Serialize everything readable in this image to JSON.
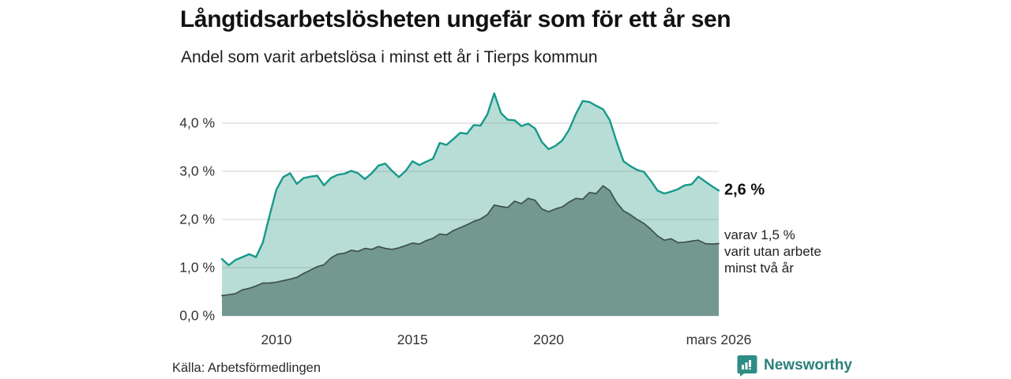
{
  "header": {
    "title": "Långtidsarbetslösheten ungefär som för ett år sen",
    "subtitle": "Andel som varit arbetslösa i minst ett år i Tierps kommun"
  },
  "annotations": {
    "total_end_label": "2,6 %",
    "note_lines": [
      "varav 1,5 %",
      "varit utan arbete",
      "minst två år"
    ]
  },
  "source": {
    "label": "Källa: Arbetsförmedlingen"
  },
  "branding": {
    "name": "Newsworthy",
    "logo_icon": "bar-chart-speech-bubble-icon",
    "brand_color": "#2e8d85"
  },
  "colors": {
    "total_line": "#17998a",
    "total_fill": "#b7ddd6",
    "subseries_line": "#3f514c",
    "subseries_fill": "#72988f",
    "gridline": "#888888",
    "text": "#1a1a1a"
  },
  "chart_data": {
    "type": "area",
    "title": "Långtidsarbetslösheten ungefär som för ett år sen",
    "xlabel": "",
    "ylabel": "",
    "grid": true,
    "legend_position": "none",
    "xlim": [
      2008,
      2026.25
    ],
    "ylim": [
      0,
      4.75
    ],
    "x_ticks": [
      {
        "value": 2010,
        "label": "2010"
      },
      {
        "value": 2015,
        "label": "2015"
      },
      {
        "value": 2020,
        "label": "2020"
      },
      {
        "value": 2026.25,
        "label": "mars 2026"
      }
    ],
    "y_ticks": [
      {
        "value": 0,
        "label": "0,0 %"
      },
      {
        "value": 1,
        "label": "1,0 %"
      },
      {
        "value": 2,
        "label": "2,0 %"
      },
      {
        "value": 3,
        "label": "3,0 %"
      },
      {
        "value": 4,
        "label": "4,0 %"
      }
    ],
    "x": [
      2008,
      2008.25,
      2008.5,
      2008.75,
      2009,
      2009.25,
      2009.5,
      2009.75,
      2010,
      2010.25,
      2010.5,
      2010.75,
      2011,
      2011.25,
      2011.5,
      2011.75,
      2012,
      2012.25,
      2012.5,
      2012.75,
      2013,
      2013.25,
      2013.5,
      2013.75,
      2014,
      2014.25,
      2014.5,
      2014.75,
      2015,
      2015.25,
      2015.5,
      2015.75,
      2016,
      2016.25,
      2016.5,
      2016.75,
      2017,
      2017.25,
      2017.5,
      2017.75,
      2018,
      2018.25,
      2018.5,
      2018.75,
      2019,
      2019.25,
      2019.5,
      2019.75,
      2020,
      2020.25,
      2020.5,
      2020.75,
      2021,
      2021.25,
      2021.5,
      2021.75,
      2022,
      2022.25,
      2022.5,
      2022.75,
      2023,
      2023.25,
      2023.5,
      2023.75,
      2024,
      2024.25,
      2024.5,
      2024.75,
      2025,
      2025.25,
      2025.5,
      2025.75,
      2026,
      2026.25
    ],
    "series": [
      {
        "name": "Andel arbetslösa minst ett år",
        "end_value": 2.6,
        "end_label": "2,6 %",
        "values": [
          1.18,
          1.05,
          1.16,
          1.22,
          1.28,
          1.22,
          1.52,
          2.08,
          2.62,
          2.88,
          2.96,
          2.74,
          2.86,
          2.89,
          2.91,
          2.71,
          2.86,
          2.93,
          2.95,
          3.01,
          2.96,
          2.84,
          2.96,
          3.12,
          3.16,
          3.01,
          2.88,
          3.01,
          3.21,
          3.13,
          3.2,
          3.26,
          3.59,
          3.55,
          3.67,
          3.8,
          3.78,
          3.96,
          3.95,
          4.18,
          4.62,
          4.21,
          4.07,
          4.06,
          3.94,
          3.99,
          3.89,
          3.61,
          3.46,
          3.53,
          3.64,
          3.86,
          4.19,
          4.46,
          4.44,
          4.36,
          4.29,
          4.06,
          3.61,
          3.21,
          3.11,
          3.03,
          2.99,
          2.81,
          2.6,
          2.54,
          2.58,
          2.63,
          2.71,
          2.73,
          2.89,
          2.79,
          2.69,
          2.6
        ]
      },
      {
        "name": "varav utan arbete minst två år",
        "end_value": 1.5,
        "end_label": "1,5 %",
        "values": [
          0.42,
          0.44,
          0.46,
          0.54,
          0.57,
          0.62,
          0.68,
          0.68,
          0.7,
          0.73,
          0.76,
          0.8,
          0.88,
          0.95,
          1.02,
          1.06,
          1.2,
          1.28,
          1.3,
          1.36,
          1.34,
          1.4,
          1.38,
          1.44,
          1.4,
          1.38,
          1.41,
          1.46,
          1.51,
          1.49,
          1.56,
          1.61,
          1.7,
          1.68,
          1.77,
          1.83,
          1.89,
          1.96,
          2.01,
          2.1,
          2.3,
          2.27,
          2.25,
          2.38,
          2.33,
          2.44,
          2.4,
          2.22,
          2.16,
          2.22,
          2.26,
          2.36,
          2.44,
          2.42,
          2.56,
          2.54,
          2.7,
          2.6,
          2.35,
          2.18,
          2.1,
          2.0,
          1.92,
          1.8,
          1.66,
          1.57,
          1.6,
          1.52,
          1.53,
          1.55,
          1.57,
          1.5,
          1.49,
          1.5
        ]
      }
    ]
  }
}
